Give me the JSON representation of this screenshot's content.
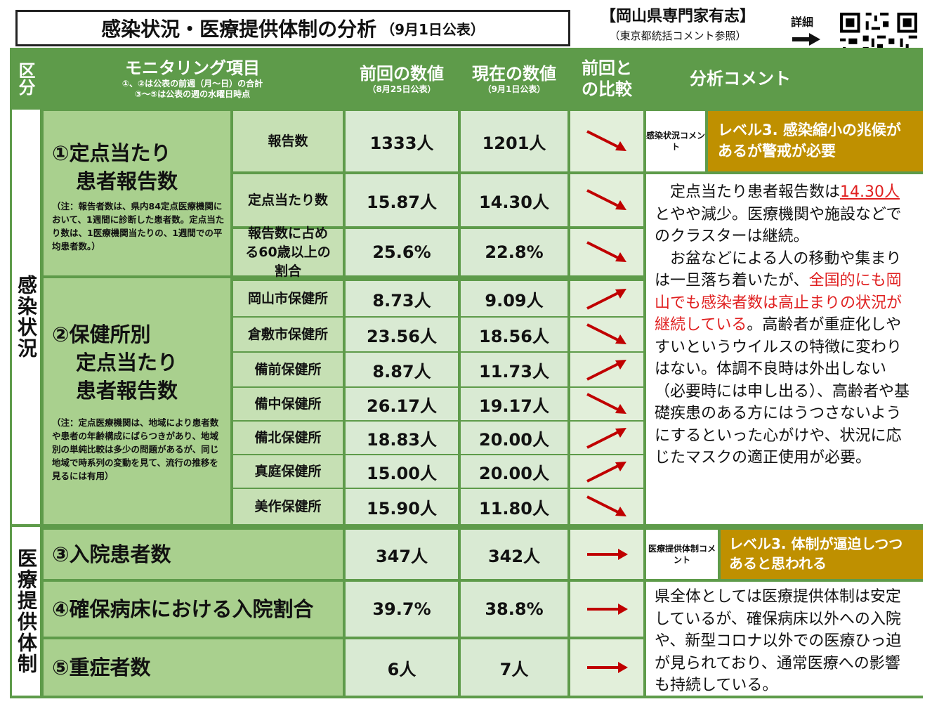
{
  "header": {
    "title": "感染状況・医療提供体制の分析",
    "published": "（9月1日公表）",
    "org": "【岡山県専門家有志】",
    "org_note": "（東京都統括コメント参照）",
    "detail": "詳細"
  },
  "table_headers": {
    "category": "区分",
    "item": "モニタリング項目",
    "item_note1": "①、②は公表の前週（月～日）の合計",
    "item_note2": "③～⑤は公表の週の水曜日時点",
    "prev": "前回の数値",
    "prev_date": "（8月25日公表）",
    "curr": "現在の数値",
    "curr_date": "（9月1日公表）",
    "compare": "前回との比較",
    "comment": "分析コメント"
  },
  "sections": {
    "infection": "感染状況",
    "medical": "医療提供体制"
  },
  "items": {
    "item1_title_1": "①定点当たり",
    "item1_title_2": "患者報告数",
    "item1_note": "（注：報告者数は、県内84定点医療機関において、1週間に診断した患者数。定点当たり数は、1医療機関当たりの、1週間での平均患者数。）",
    "item2_title_1": "②保健所別",
    "item2_title_2": "定点当たり",
    "item2_title_3": "患者報告数",
    "item2_note": "（注：定点医療機関は、地域により患者数や患者の年齢構成にばらつきがあり、地域別の単純比較は多少の問題があるが、同じ地域で時系列の変動を見て、流行の推移を見るには有用）",
    "item3": "③入院患者数",
    "item4": "④確保病床における入院割合",
    "item5": "⑤重症者数"
  },
  "rows": [
    {
      "label": "報告数",
      "prev": "1333人",
      "curr": "1201人",
      "trend": "down"
    },
    {
      "label": "定点当たり数",
      "prev": "15.87人",
      "curr": "14.30人",
      "trend": "down"
    },
    {
      "label": "報告数に占める60歳以上の割合",
      "prev": "25.6%",
      "curr": "22.8%",
      "trend": "down"
    },
    {
      "label": "岡山市保健所",
      "prev": "8.73人",
      "curr": "9.09人",
      "trend": "up"
    },
    {
      "label": "倉敷市保健所",
      "prev": "23.56人",
      "curr": "18.56人",
      "trend": "down"
    },
    {
      "label": "備前保健所",
      "prev": "8.87人",
      "curr": "11.73人",
      "trend": "up"
    },
    {
      "label": "備中保健所",
      "prev": "26.17人",
      "curr": "19.17人",
      "trend": "down"
    },
    {
      "label": "備北保健所",
      "prev": "18.83人",
      "curr": "20.00人",
      "trend": "up"
    },
    {
      "label": "真庭保健所",
      "prev": "15.00人",
      "curr": "20.00人",
      "trend": "up"
    },
    {
      "label": "美作保健所",
      "prev": "15.90人",
      "curr": "11.80人",
      "trend": "down"
    },
    {
      "label": "③入院患者数",
      "prev": "347人",
      "curr": "342人",
      "trend": "flat"
    },
    {
      "label": "④確保病床における入院割合",
      "prev": "39.7%",
      "curr": "38.8%",
      "trend": "flat"
    },
    {
      "label": "⑤重症者数",
      "prev": "6人",
      "curr": "7人",
      "trend": "flat"
    }
  ],
  "infection_comment": {
    "label": "感染状況コメント",
    "level": "レベル3. 感染縮小の兆候があるが警戒が必要",
    "p1_a": "定点当たり患者報告数は",
    "p1_red": "14.30人",
    "p1_b": "とやや減少。医療機関や施設などでのクラスターは継続。",
    "p2_a": "お盆などによる人の移動や集まりは一旦落ち着いたが、",
    "p2_red": "全国的にも岡山でも感染者数は高止まりの状況が継続している",
    "p2_b": "。高齢者が重症化しやすいというウイルスの特徴に変わりはない。体調不良時は外出しない（必要時には申し出る）、高齢者や基礎疾患のある方にはうつさないようにするといった心がけや、状況に応じたマスクの適正使用が必要。"
  },
  "medical_comment": {
    "label": "医療提供体制コメント",
    "level": "レベル3. 体制が逼迫しつつあると思われる",
    "text": "県全体としては医療提供体制は安定しているが、確保病床以外への入院や、新型コロナ以外での医療ひっ迫が見られており、通常医療への影響も持続している。"
  },
  "colors": {
    "frame_green": "#5e9b4a",
    "arrow_red": "#c00000",
    "level_gold": "#bf9000",
    "highlight_red": "#e02020"
  }
}
